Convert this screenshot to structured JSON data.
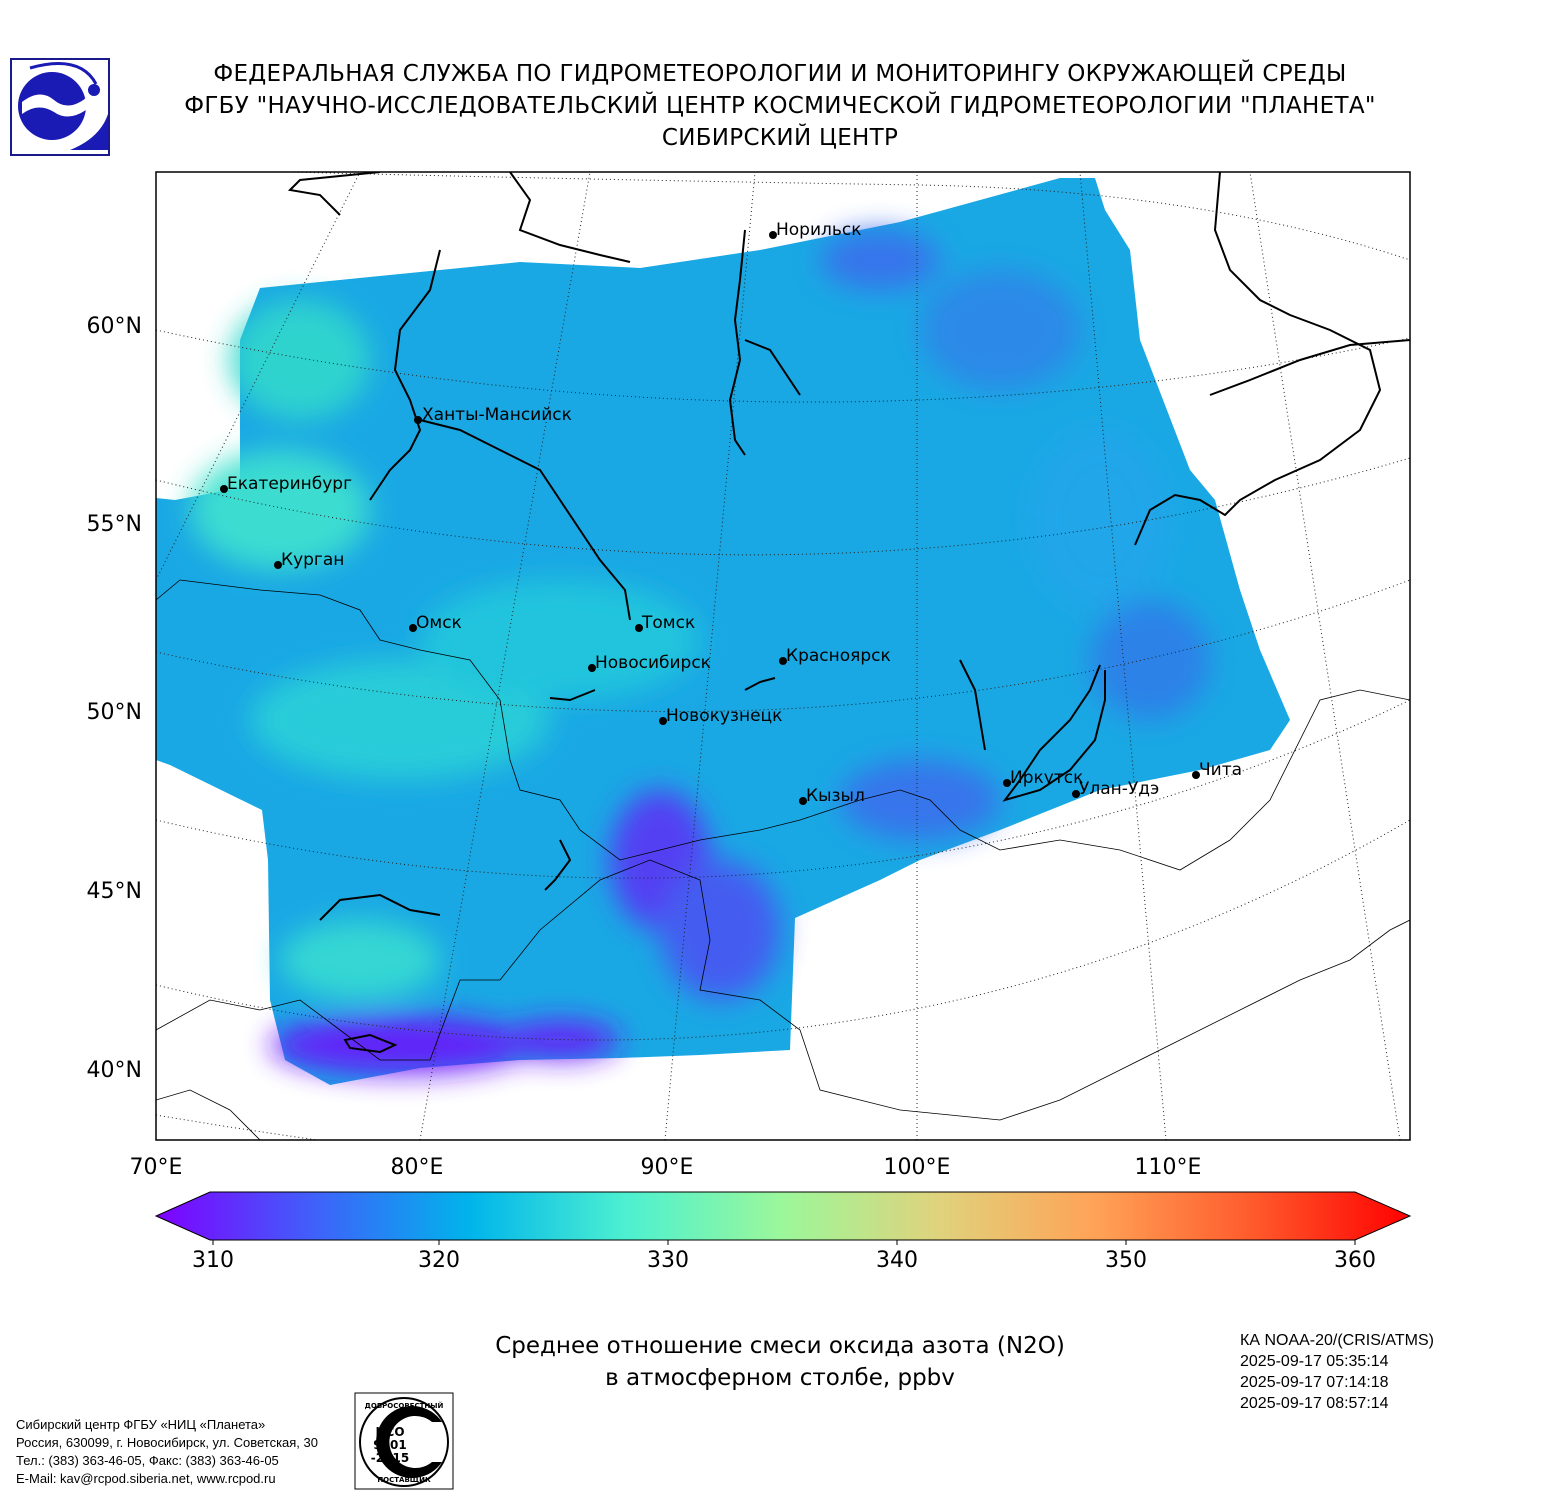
{
  "header": {
    "line1": "ФЕДЕРАЛЬНАЯ СЛУЖБА ПО ГИДРОМЕТЕОРОЛОГИИ И МОНИТОРИНГУ ОКРУЖАЮЩЕЙ СРЕДЫ",
    "line2": "ФГБУ \"НАУЧНО-ИССЛЕДОВАТЕЛЬСКИЙ ЦЕНТР КОСМИЧЕСКОЙ ГИДРОМЕТЕОРОЛОГИИ \"ПЛАНЕТА\"",
    "line3": "СИБИРСКИЙ ЦЕНТР"
  },
  "map": {
    "lat_labels": [
      "60°N",
      "55°N",
      "50°N",
      "45°N",
      "40°N"
    ],
    "lon_labels": [
      "70°E",
      "80°E",
      "90°E",
      "100°E",
      "110°E"
    ],
    "cities": [
      {
        "name": "Норильск"
      },
      {
        "name": "Ханты-Мансийск"
      },
      {
        "name": "Екатеринбург"
      },
      {
        "name": "Курган"
      },
      {
        "name": "Омск"
      },
      {
        "name": "Томск"
      },
      {
        "name": "Новосибирск"
      },
      {
        "name": "Красноярск"
      },
      {
        "name": "Новокузнецк"
      },
      {
        "name": "Кызыл"
      },
      {
        "name": "Иркутск"
      },
      {
        "name": "Улан-Удэ"
      },
      {
        "name": "Чита"
      }
    ]
  },
  "colorbar": {
    "min": 310,
    "max": 360,
    "ticks": [
      "310",
      "320",
      "330",
      "340",
      "350",
      "360"
    ],
    "extend": "both",
    "colors": [
      "#7f00ff",
      "#4060fa",
      "#00b4eb",
      "#4df0d0",
      "#9cf79a",
      "#e0d27c",
      "#ffa256",
      "#ff5a2c",
      "#ff0000"
    ]
  },
  "caption": {
    "line1": "Среднее отношение смеси оксида азота (N2O)",
    "line2": "в атмосферном столбе, ppbv"
  },
  "satellite": {
    "instrument": "КА NOAA-20/(CRIS/ATMS)",
    "times": [
      "2025-09-17 05:35:14",
      "2025-09-17 07:14:18",
      "2025-09-17 08:57:14"
    ]
  },
  "contacts": {
    "line1": "Сибирский центр ФГБУ «НИЦ «Планета»",
    "line2": "Россия, 630099, г. Новосибирск, ул. Советская, 30",
    "line3": "Тел.: (383) 363-46-05, Факс: (383) 363-46-05",
    "line4": "E-Mail: kav@rcpod.siberia.net, www.rcpod.ru"
  },
  "iso_badge": {
    "top": "ДОБРОСОВЕСТНЫЙ",
    "text1": "ИСО",
    "text2": "9001",
    "text3": "-2015",
    "bottom": "ПОСТАВЩИК"
  }
}
